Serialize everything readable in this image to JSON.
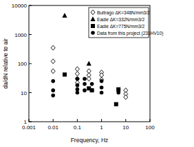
{
  "chart_data": {
    "type": "scatter",
    "x_label": "Frequency, Hz",
    "y_label": "da/dN relative to air",
    "log": true,
    "grid": false,
    "legend": "top-right",
    "xlim": [
      0.001,
      100
    ],
    "ylim": [
      1,
      10000
    ],
    "xticks": [
      0.001,
      0.01,
      0.1,
      1,
      10,
      100
    ],
    "yticks": [
      1,
      10,
      100,
      1000,
      10000
    ],
    "series": [
      {
        "name": "Buitrago ΔK=348N/mm3/2",
        "color": "#000000",
        "marker": "diamond-open",
        "x": [
          0.01,
          0.01,
          0.01,
          0.1,
          0.1,
          0.1,
          0.1,
          0.3,
          0.3,
          0.3,
          1,
          1,
          1,
          10,
          10,
          10
        ],
        "values": [
          350,
          120,
          55,
          65,
          45,
          30,
          22,
          55,
          40,
          30,
          50,
          40,
          28,
          12,
          9,
          7
        ]
      },
      {
        "name": "Eadie ΔK=332N/mm3/2",
        "color": "#000000",
        "marker": "triangle",
        "x": [
          0.03,
          0.3
        ],
        "values": [
          4500,
          100
        ]
      },
      {
        "name": "Eadie ΔK=775N/mm3/2",
        "color": "#000000",
        "marker": "square",
        "x": [
          0.03,
          0.3,
          0.4,
          4,
          5
        ],
        "values": [
          42,
          14,
          12,
          4,
          13
        ]
      },
      {
        "name": "Data from this project (231HV10)",
        "color": "#000000",
        "marker": "circle",
        "x": [
          0.01,
          0.01,
          0.01,
          0.1,
          0.1,
          0.1,
          0.1,
          0.2,
          0.2,
          0.2,
          0.4,
          0.4,
          1,
          1,
          1,
          5,
          5
        ],
        "values": [
          25,
          12,
          8,
          30,
          18,
          13,
          10,
          30,
          20,
          12,
          20,
          12,
          25,
          15,
          10,
          12,
          10
        ]
      }
    ]
  }
}
